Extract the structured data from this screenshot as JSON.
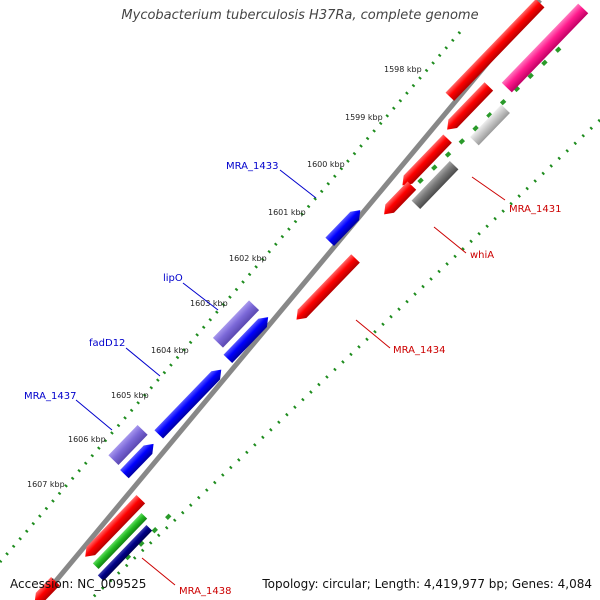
{
  "title": "Mycobacterium tuberculosis H37Ra, complete genome",
  "footer": {
    "accession": "Accession: NC_009525",
    "topology": "Topology: circular; Length: 4,419,977 bp; Genes: 4,084"
  },
  "scale_ticks": [
    "1598 kbp",
    "1599 kbp",
    "1600 kbp",
    "1601 kbp",
    "1602 kbp",
    "1603 kbp",
    "1604 kbp",
    "1605 kbp",
    "1606 kbp",
    "1607 kbp"
  ],
  "gene_labels": [
    {
      "name": "MRA_1433",
      "color": "#0000cc"
    },
    {
      "name": "lipO",
      "color": "#0000cc"
    },
    {
      "name": "fadD12",
      "color": "#0000cc"
    },
    {
      "name": "MRA_1437",
      "color": "#0000cc"
    },
    {
      "name": "MRA_1431",
      "color": "#cc0000"
    },
    {
      "name": "whiA",
      "color": "#cc0000"
    },
    {
      "name": "MRA_1434",
      "color": "#cc0000"
    },
    {
      "name": "MRA_1438",
      "color": "#cc0000"
    }
  ],
  "colors": {
    "forward_gene": "#ff0000",
    "reverse_gene": "#0000ff",
    "light_blue_gene": "#7b68d8",
    "pink_gene": "#ff1a8c",
    "gray_gene": "#777777",
    "light_gray_gene": "#c8c8c8",
    "green_gene": "#22bb22",
    "navy_gene": "#000088",
    "backbone": "#888888",
    "dots": "#1e8c1e"
  }
}
